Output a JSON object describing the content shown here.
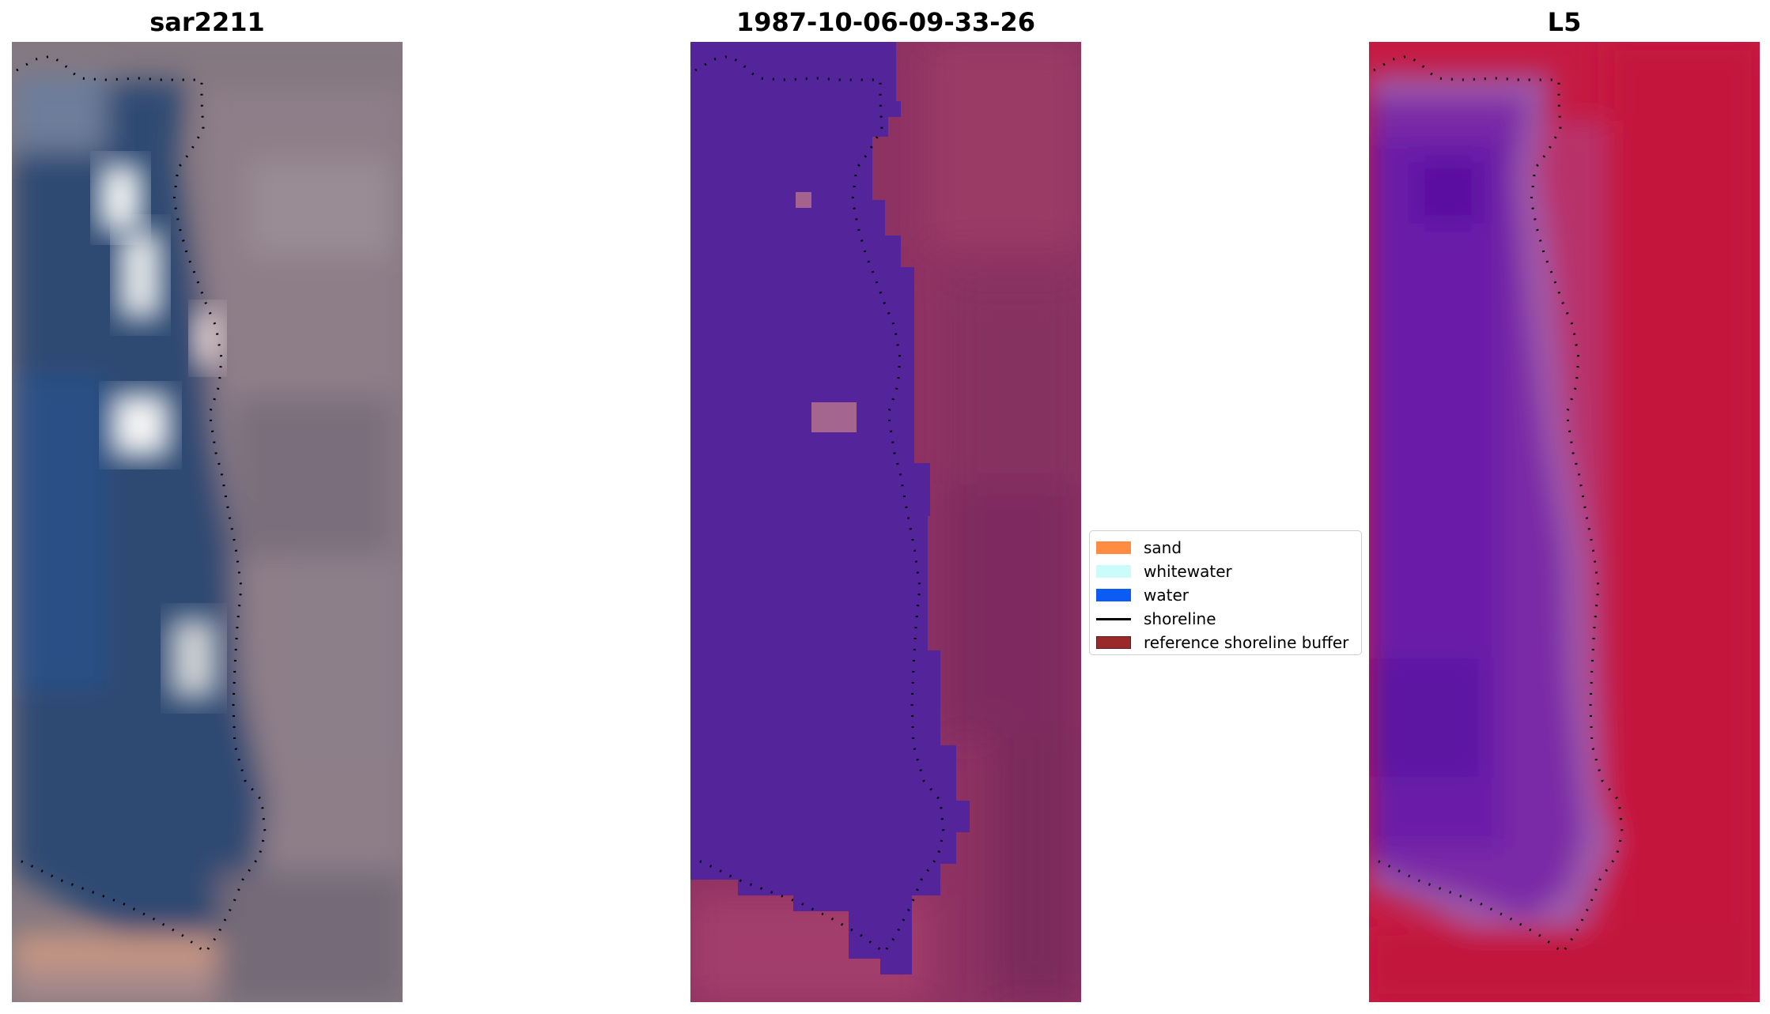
{
  "panels": [
    {
      "title": "sar2211"
    },
    {
      "title": "1987-10-06-09-33-26"
    },
    {
      "title": "L5"
    }
  ],
  "legend": {
    "items": [
      {
        "label": "sand",
        "color": "#ff8c42",
        "kind": "patch"
      },
      {
        "label": "whitewater",
        "color": "#ccfbfb",
        "kind": "patch"
      },
      {
        "label": "water",
        "color": "#0a5cf5",
        "kind": "patch"
      },
      {
        "label": "shoreline",
        "color": "#000000",
        "kind": "line"
      },
      {
        "label": "reference shoreline buffer",
        "color": "#9a2a2a",
        "kind": "patch"
      }
    ]
  },
  "colors": {
    "rgb_water": "#2f4f7a",
    "rgb_land": "#8a7a86",
    "rgb_whitewater": "#f2f4f4",
    "classified_water": "#54249a",
    "classified_land": "#8e3262",
    "index_water": "#6a1aa8",
    "index_land": "#c8143c"
  }
}
